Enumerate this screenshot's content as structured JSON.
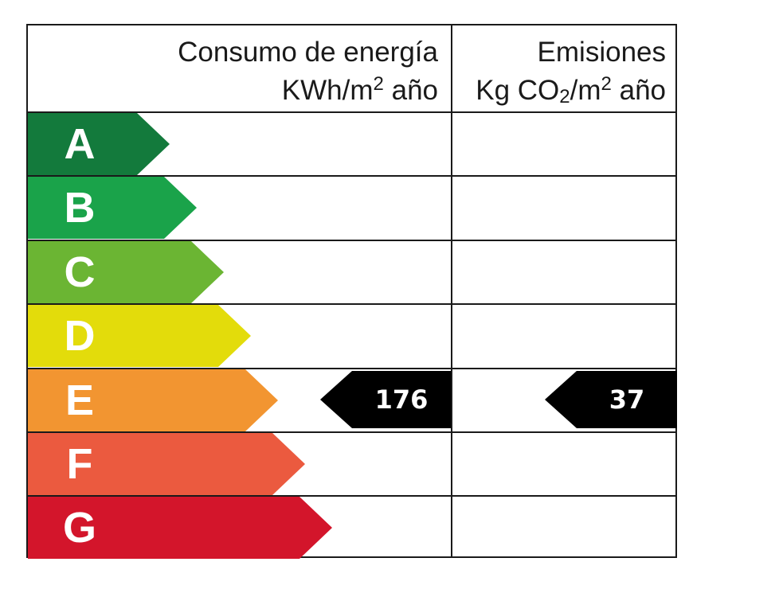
{
  "header": {
    "energy_line1": "Consumo de energía",
    "energy_line2_main": "KWh/m",
    "energy_line2_sup": "2",
    "energy_line2_tail": " año",
    "emissions_line1": "Emisiones",
    "emissions_line2_a": "Kg CO",
    "emissions_line2_sub": "2",
    "emissions_line2_b": "/m",
    "emissions_line2_sup": "2",
    "emissions_line2_tail": " año"
  },
  "bands": [
    {
      "letter": "A",
      "color": "#137a3c"
    },
    {
      "letter": "B",
      "color": "#1aa34a"
    },
    {
      "letter": "C",
      "color": "#6bb533"
    },
    {
      "letter": "D",
      "color": "#e3dc0b"
    },
    {
      "letter": "E",
      "color": "#f29531"
    },
    {
      "letter": "F",
      "color": "#eb5a3f"
    },
    {
      "letter": "G",
      "color": "#d3152b"
    }
  ],
  "rating": {
    "band": "E",
    "energy_value": "176",
    "emissions_value": "37"
  }
}
